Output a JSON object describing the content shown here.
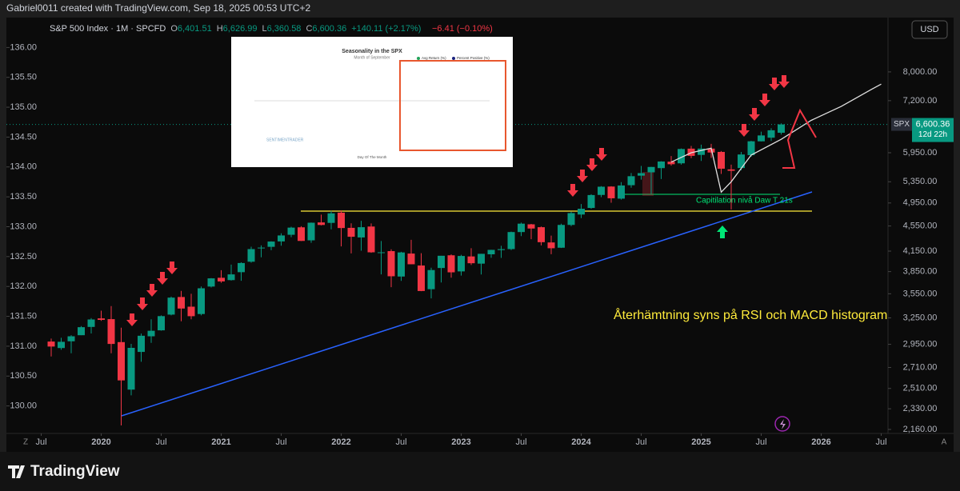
{
  "header": {
    "author_line": "Gabriel0011 created with TradingView.com, Sep 18, 2025 00:53 UTC+2",
    "currency": "USD",
    "footer_brand": "TradingView",
    "left_corner": "Z",
    "right_corner": "A"
  },
  "chart_data": {
    "type": "candlestick",
    "title": "S&P 500 Index · 1M · SPCFD",
    "legend": [
      {
        "key": "O",
        "value": "6,401.51"
      },
      {
        "key": "H",
        "value": "6,626.99"
      },
      {
        "key": "L",
        "value": "6,360.58"
      },
      {
        "key": "C",
        "value": "6,600.36"
      }
    ],
    "change": "+140.11 (+2.17%)",
    "second_change": "−6.41 (−0.10%)",
    "price_label": {
      "symbol": "SPX",
      "price": "6,600.36",
      "countdown": "12d 22h"
    },
    "up_color": "#089981",
    "down_color": "#f23645",
    "log_scale": true,
    "x": [
      "2019-08",
      "2019-09",
      "2019-10",
      "2019-11",
      "2019-12",
      "2020-01",
      "2020-02",
      "2020-03",
      "2020-04",
      "2020-05",
      "2020-06",
      "2020-07",
      "2020-08",
      "2020-09",
      "2020-10",
      "2020-11",
      "2020-12",
      "2021-01",
      "2021-02",
      "2021-03",
      "2021-04",
      "2021-05",
      "2021-06",
      "2021-07",
      "2021-08",
      "2021-09",
      "2021-10",
      "2021-11",
      "2021-12",
      "2022-01",
      "2022-02",
      "2022-03",
      "2022-04",
      "2022-05",
      "2022-06",
      "2022-07",
      "2022-08",
      "2022-09",
      "2022-10",
      "2022-11",
      "2022-12",
      "2023-01",
      "2023-02",
      "2023-03",
      "2023-04",
      "2023-05",
      "2023-06",
      "2023-07",
      "2023-08",
      "2023-09",
      "2023-10",
      "2023-11",
      "2023-12",
      "2024-01",
      "2024-02",
      "2024-03",
      "2024-04",
      "2024-05",
      "2024-06",
      "2024-07",
      "2024-08",
      "2024-09",
      "2024-10",
      "2024-11",
      "2024-12",
      "2025-01",
      "2025-02",
      "2025-03",
      "2025-04",
      "2025-05",
      "2025-06",
      "2025-07",
      "2025-08",
      "2025-09"
    ],
    "open": [
      2980,
      2910,
      2983,
      3050,
      3144,
      3244,
      3235,
      2974,
      2499,
      2869,
      3038,
      3105,
      3289,
      3508,
      3386,
      3296,
      3645,
      3764,
      3732,
      3842,
      3992,
      4192,
      4216,
      4300,
      4406,
      4528,
      4317,
      4610,
      4602,
      4778,
      4519,
      4363,
      4541,
      4130,
      4150,
      3781,
      4113,
      3937,
      3610,
      3901,
      4087,
      3853,
      4070,
      3964,
      4102,
      4166,
      4181,
      4450,
      4578,
      4530,
      4284,
      4202,
      4568,
      4745,
      4861,
      5098,
      5257,
      5029,
      5283,
      5471,
      5538,
      5624,
      5758,
      5724,
      6040,
      5903,
      6041,
      5968,
      5598,
      5626,
      5897,
      6204,
      6287,
      6401.51
    ],
    "high": [
      3013,
      3022,
      3050,
      3154,
      3248,
      3337,
      3394,
      3136,
      2955,
      3068,
      3233,
      3280,
      3514,
      3588,
      3550,
      3646,
      3760,
      3870,
      3950,
      3983,
      4218,
      4238,
      4302,
      4429,
      4538,
      4546,
      4608,
      4744,
      4809,
      4819,
      4595,
      4637,
      4593,
      4307,
      4178,
      4140,
      4325,
      4119,
      3906,
      4080,
      4101,
      4095,
      4195,
      4110,
      4170,
      4231,
      4458,
      4607,
      4584,
      4541,
      4393,
      4588,
      4794,
      4932,
      5111,
      5265,
      5264,
      5342,
      5524,
      5669,
      5651,
      5768,
      5878,
      6044,
      6100,
      6128,
      6147,
      5987,
      5696,
      5968,
      6215,
      6428,
      6508,
      6626.99
    ],
    "low": [
      2822,
      2892,
      2855,
      3050,
      3070,
      3214,
      2855,
      2192,
      2447,
      2767,
      2966,
      3101,
      3280,
      3210,
      3233,
      3280,
      3633,
      3695,
      3725,
      3723,
      3978,
      4057,
      4164,
      4233,
      4367,
      4306,
      4279,
      4560,
      4495,
      4222,
      4115,
      4157,
      4124,
      3811,
      3637,
      3721,
      3955,
      3584,
      3491,
      3699,
      3765,
      3794,
      3944,
      3809,
      4049,
      4048,
      4166,
      4385,
      4335,
      4238,
      4104,
      4197,
      4546,
      4683,
      4845,
      5057,
      4954,
      5012,
      5235,
      5391,
      5120,
      5403,
      5675,
      5696,
      5833,
      5773,
      5837,
      5505,
      4835,
      5578,
      5862,
      6202,
      6212,
      6360.58
    ],
    "close": [
      2926,
      2977,
      3038,
      3141,
      3231,
      3226,
      2954,
      2585,
      2912,
      3044,
      3100,
      3271,
      3500,
      3363,
      3270,
      3622,
      3756,
      3714,
      3811,
      3973,
      4181,
      4204,
      4298,
      4395,
      4523,
      4308,
      4605,
      4567,
      4766,
      4516,
      4374,
      4530,
      4132,
      4132,
      3785,
      4130,
      3955,
      3586,
      3872,
      4080,
      3840,
      4077,
      3970,
      4109,
      4169,
      4180,
      4450,
      4589,
      4508,
      4288,
      4194,
      4568,
      4770,
      4846,
      5096,
      5254,
      5036,
      5278,
      5460,
      5522,
      5648,
      5762,
      5705,
      6032,
      5882,
      6041,
      5955,
      5612,
      5569,
      5912,
      6205,
      6339,
      6460,
      6600.36
    ],
    "lines": [
      {
        "color": "#e0e0e0",
        "x": [
          "2024-10",
          "2024-12",
          "2025-02",
          "2025-03",
          "2025-04",
          "2025-06",
          "2025-09",
          "2025-12",
          "2026-03",
          "2026-06",
          "2026-07"
        ],
        "values": [
          5750,
          5950,
          6050,
          5150,
          5350,
          5900,
          6250,
          6700,
          7050,
          7500,
          7650
        ]
      }
    ],
    "xlim": [
      "2019-04",
      "2026-08"
    ],
    "xticks": [
      {
        "value": "2019-07",
        "label": "Jul"
      },
      {
        "value": "2020-01",
        "label": "2020"
      },
      {
        "value": "2020-07",
        "label": "Jul"
      },
      {
        "value": "2021-01",
        "label": "2021"
      },
      {
        "value": "2021-07",
        "label": "Jul"
      },
      {
        "value": "2022-01",
        "label": "2022"
      },
      {
        "value": "2022-07",
        "label": "Jul"
      },
      {
        "value": "2023-01",
        "label": "2023"
      },
      {
        "value": "2023-07",
        "label": "Jul"
      },
      {
        "value": "2024-01",
        "label": "2024"
      },
      {
        "value": "2024-07",
        "label": "Jul"
      },
      {
        "value": "2025-01",
        "label": "2025"
      },
      {
        "value": "2025-07",
        "label": "Jul"
      },
      {
        "value": "2026-01",
        "label": "2026"
      },
      {
        "value": "2026-07",
        "label": "Jul"
      }
    ],
    "ylim": [
      2110,
      9760
    ],
    "yticks": [
      {
        "value": 8000,
        "label": "8,000.00"
      },
      {
        "value": 7200,
        "label": "7,200.00"
      },
      {
        "value": 5950,
        "label": "5,950.00"
      },
      {
        "value": 5350,
        "label": "5,350.00"
      },
      {
        "value": 4950,
        "label": "4,950.00"
      },
      {
        "value": 4550,
        "label": "4,550.00"
      },
      {
        "value": 4150,
        "label": "4,150.00"
      },
      {
        "value": 3850,
        "label": "3,850.00"
      },
      {
        "value": 3550,
        "label": "3,550.00"
      },
      {
        "value": 3250,
        "label": "3,250.00"
      },
      {
        "value": 2950,
        "label": "2,950.00"
      },
      {
        "value": 2710,
        "label": "2,710.00"
      },
      {
        "value": 2510,
        "label": "2,510.00"
      },
      {
        "value": 2330,
        "label": "2,330.00"
      },
      {
        "value": 2160,
        "label": "2,160.00"
      }
    ],
    "y2lim": [
      129.5,
      136.5
    ],
    "y2ticks": [
      {
        "value": 136,
        "label": "136.00"
      },
      {
        "value": 135.5,
        "label": "135.50"
      },
      {
        "value": 135,
        "label": "135.00"
      },
      {
        "value": 134.5,
        "label": "134.50"
      },
      {
        "value": 134,
        "label": "134.00"
      },
      {
        "value": 133.5,
        "label": "133.50"
      },
      {
        "value": 133,
        "label": "133.00"
      },
      {
        "value": 132.5,
        "label": "132.50"
      },
      {
        "value": 132,
        "label": "132.00"
      },
      {
        "value": 131.5,
        "label": "131.50"
      },
      {
        "value": 131,
        "label": "131.00"
      },
      {
        "value": 130.5,
        "label": "130.50"
      },
      {
        "value": 130,
        "label": "130.00"
      }
    ],
    "annotations": {
      "capitulation": "Capitilation nivå Daw T 21s",
      "recovery": "Återhämtning syns på RSI och MACD histogram"
    }
  },
  "inset": {
    "title": "Seasonality in the SPX",
    "subtitle": "Month of September",
    "legend": [
      "Avg Return (%)",
      "Percent Positive (%)"
    ],
    "x_label": "Day Of The Month",
    "brand": "SENTIMENTRADER"
  }
}
